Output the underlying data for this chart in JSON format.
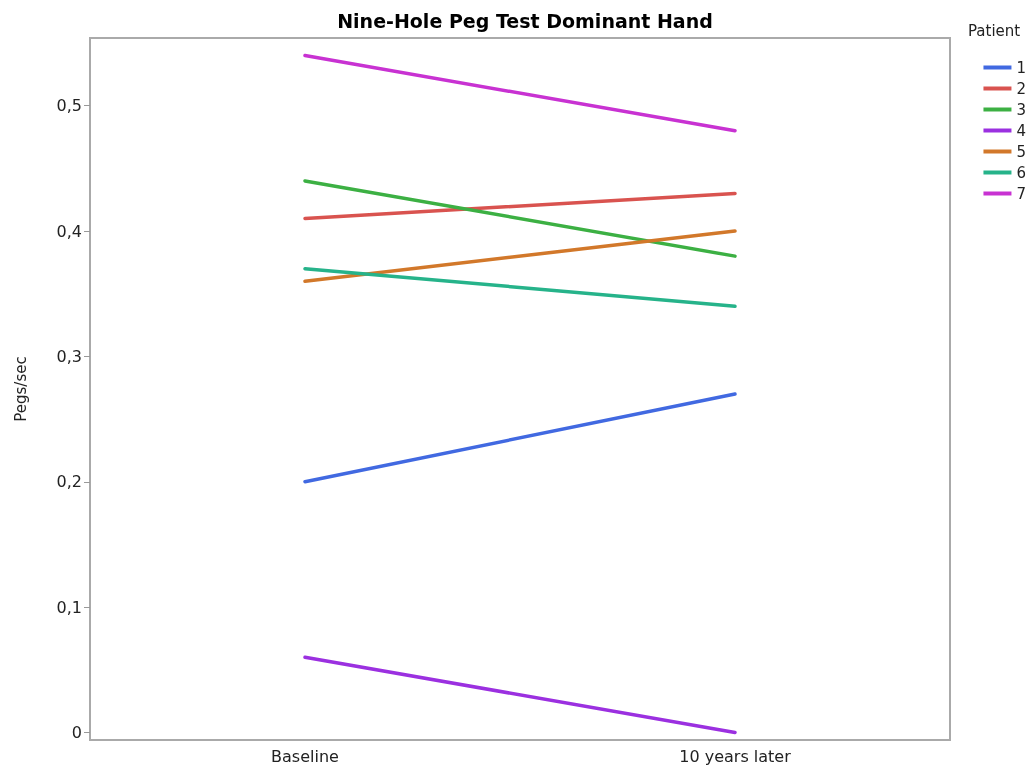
{
  "chart_data": {
    "type": "line",
    "title": "Nine-Hole Peg Test Dominant Hand",
    "ylabel": "Pegs/sec",
    "legend_title": "Patient",
    "categories": [
      "Baseline",
      "10 years later"
    ],
    "series": [
      {
        "name": "1",
        "color": "#4169e1",
        "values": [
          0.2,
          0.27
        ]
      },
      {
        "name": "2",
        "color": "#d9534f",
        "values": [
          0.41,
          0.43
        ]
      },
      {
        "name": "3",
        "color": "#3cb043",
        "values": [
          0.44,
          0.38
        ]
      },
      {
        "name": "4",
        "color": "#9b30e0",
        "values": [
          0.06,
          0.0
        ]
      },
      {
        "name": "5",
        "color": "#d2782a",
        "values": [
          0.36,
          0.4
        ]
      },
      {
        "name": "6",
        "color": "#26b38a",
        "values": [
          0.37,
          0.34
        ]
      },
      {
        "name": "7",
        "color": "#c832d2",
        "values": [
          0.54,
          0.48
        ]
      }
    ],
    "ylim": [
      -0.006,
      0.554
    ],
    "yticks": [
      0,
      {
        "value": 0.1,
        "label": "0,1"
      },
      {
        "value": 0.2,
        "label": "0,2"
      },
      {
        "value": 0.3,
        "label": "0,3"
      },
      {
        "value": 0.4,
        "label": "0,4"
      },
      {
        "value": 0.5,
        "label": "0,5"
      }
    ],
    "legend": "top right",
    "grid": false,
    "marker": "none",
    "line_style": "solid"
  }
}
